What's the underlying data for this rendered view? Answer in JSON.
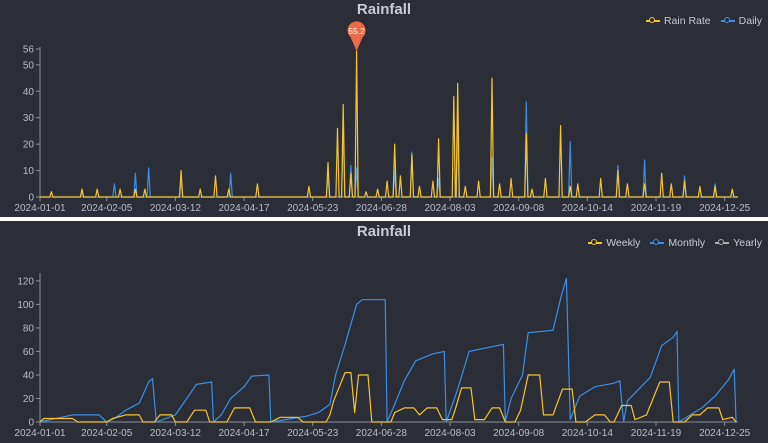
{
  "chart_data": [
    {
      "type": "line",
      "title": "Rainfall",
      "legend_position": "top-right",
      "grid": false,
      "x_tick_labels": [
        "2024-01-01",
        "2024-02-05",
        "2024-03-12",
        "2024-04-17",
        "2024-05-23",
        "2024-06-28",
        "2024-08-03",
        "2024-09-08",
        "2024-10-14",
        "2024-11-19",
        "2024-12-25"
      ],
      "y_ticks": [
        0,
        10,
        20,
        30,
        40,
        50,
        56
      ],
      "ylim": [
        0,
        56
      ],
      "x_range": [
        "2024-01-01",
        "2024-12-31"
      ],
      "series": [
        {
          "name": "Rain Rate",
          "color": "#f4c431",
          "points": [
            [
              "2024-01-07",
              2
            ],
            [
              "2024-01-23",
              3
            ],
            [
              "2024-01-31",
              3
            ],
            [
              "2024-02-12",
              3
            ],
            [
              "2024-02-20",
              3
            ],
            [
              "2024-02-25",
              3
            ],
            [
              "2024-03-15",
              10
            ],
            [
              "2024-03-25",
              3
            ],
            [
              "2024-04-02",
              8
            ],
            [
              "2024-04-09",
              3
            ],
            [
              "2024-04-24",
              5
            ],
            [
              "2024-05-21",
              4
            ],
            [
              "2024-05-31",
              13
            ],
            [
              "2024-06-05",
              26
            ],
            [
              "2024-06-08",
              35
            ],
            [
              "2024-06-12",
              9
            ],
            [
              "2024-06-15",
              55.2
            ],
            [
              "2024-06-20",
              2
            ],
            [
              "2024-06-26",
              3
            ],
            [
              "2024-07-01",
              6
            ],
            [
              "2024-07-05",
              20
            ],
            [
              "2024-07-08",
              8
            ],
            [
              "2024-07-14",
              16
            ],
            [
              "2024-07-18",
              4
            ],
            [
              "2024-07-25",
              6
            ],
            [
              "2024-07-28",
              22
            ],
            [
              "2024-08-05",
              38
            ],
            [
              "2024-08-07",
              43
            ],
            [
              "2024-08-11",
              4
            ],
            [
              "2024-08-18",
              6
            ],
            [
              "2024-08-25",
              45
            ],
            [
              "2024-08-29",
              5
            ],
            [
              "2024-09-04",
              7
            ],
            [
              "2024-09-12",
              24
            ],
            [
              "2024-09-15",
              3
            ],
            [
              "2024-09-22",
              7
            ],
            [
              "2024-09-30",
              27
            ],
            [
              "2024-10-05",
              4
            ],
            [
              "2024-10-09",
              5
            ],
            [
              "2024-10-21",
              7
            ],
            [
              "2024-10-30",
              10
            ],
            [
              "2024-11-04",
              5
            ],
            [
              "2024-11-13",
              5
            ],
            [
              "2024-11-22",
              9
            ],
            [
              "2024-11-27",
              5
            ],
            [
              "2024-12-04",
              6
            ],
            [
              "2024-12-12",
              4
            ],
            [
              "2024-12-20",
              4
            ],
            [
              "2024-12-29",
              3
            ]
          ],
          "max_marker": {
            "date": "2024-06-15",
            "value": 55.2
          }
        },
        {
          "name": "Daily",
          "color": "#3d8ee5",
          "points": [
            [
              "2024-01-23",
              2
            ],
            [
              "2024-02-09",
              5
            ],
            [
              "2024-02-20",
              9
            ],
            [
              "2024-02-27",
              11
            ],
            [
              "2024-03-15",
              6
            ],
            [
              "2024-04-10",
              9
            ],
            [
              "2024-05-31",
              8
            ],
            [
              "2024-06-08",
              26
            ],
            [
              "2024-06-12",
              12
            ],
            [
              "2024-06-15",
              11
            ],
            [
              "2024-07-05",
              10
            ],
            [
              "2024-07-14",
              17
            ],
            [
              "2024-07-28",
              7
            ],
            [
              "2024-08-07",
              27
            ],
            [
              "2024-08-25",
              15
            ],
            [
              "2024-09-12",
              36
            ],
            [
              "2024-10-05",
              21
            ],
            [
              "2024-10-30",
              12
            ],
            [
              "2024-11-13",
              14
            ],
            [
              "2024-12-04",
              8
            ],
            [
              "2024-12-20",
              5
            ]
          ]
        }
      ]
    },
    {
      "type": "line",
      "title": "Rainfall",
      "legend_position": "top-right",
      "grid": false,
      "x_tick_labels": [
        "2024-01-01",
        "2024-02-05",
        "2024-03-12",
        "2024-04-17",
        "2024-05-23",
        "2024-06-28",
        "2024-08-03",
        "2024-09-08",
        "2024-10-14",
        "2024-11-19",
        "2024-12-25"
      ],
      "y_ticks": [
        0,
        20,
        40,
        60,
        80,
        100,
        120
      ],
      "ylim": [
        0,
        125
      ],
      "x_range": [
        "2024-01-01",
        "2024-12-31"
      ],
      "series": [
        {
          "name": "Weekly",
          "color": "#f4c431",
          "points": [
            [
              "2024-01-01",
              0
            ],
            [
              "2024-01-03",
              3
            ],
            [
              "2024-01-18",
              3
            ],
            [
              "2024-01-21",
              0
            ],
            [
              "2024-02-05",
              0
            ],
            [
              "2024-02-08",
              3
            ],
            [
              "2024-02-15",
              6
            ],
            [
              "2024-02-22",
              6
            ],
            [
              "2024-02-24",
              0
            ],
            [
              "2024-03-01",
              0
            ],
            [
              "2024-03-04",
              6
            ],
            [
              "2024-03-10",
              6
            ],
            [
              "2024-03-12",
              0
            ],
            [
              "2024-03-18",
              0
            ],
            [
              "2024-03-22",
              10
            ],
            [
              "2024-03-28",
              10
            ],
            [
              "2024-03-30",
              0
            ],
            [
              "2024-04-08",
              0
            ],
            [
              "2024-04-12",
              12
            ],
            [
              "2024-04-20",
              12
            ],
            [
              "2024-04-23",
              0
            ],
            [
              "2024-05-01",
              0
            ],
            [
              "2024-05-06",
              4
            ],
            [
              "2024-05-15",
              4
            ],
            [
              "2024-05-18",
              0
            ],
            [
              "2024-05-30",
              0
            ],
            [
              "2024-06-01",
              6
            ],
            [
              "2024-06-03",
              18
            ],
            [
              "2024-06-09",
              42
            ],
            [
              "2024-06-12",
              42
            ],
            [
              "2024-06-14",
              8
            ],
            [
              "2024-06-16",
              40
            ],
            [
              "2024-06-21",
              40
            ],
            [
              "2024-06-23",
              0
            ],
            [
              "2024-07-03",
              0
            ],
            [
              "2024-07-05",
              8
            ],
            [
              "2024-07-10",
              12
            ],
            [
              "2024-07-15",
              12
            ],
            [
              "2024-07-18",
              6
            ],
            [
              "2024-07-22",
              12
            ],
            [
              "2024-07-27",
              12
            ],
            [
              "2024-07-30",
              2
            ],
            [
              "2024-08-04",
              2
            ],
            [
              "2024-08-06",
              12
            ],
            [
              "2024-08-09",
              29
            ],
            [
              "2024-08-14",
              29
            ],
            [
              "2024-08-16",
              2
            ],
            [
              "2024-08-21",
              2
            ],
            [
              "2024-08-25",
              12
            ],
            [
              "2024-08-29",
              12
            ],
            [
              "2024-09-01",
              0
            ],
            [
              "2024-09-06",
              0
            ],
            [
              "2024-09-09",
              10
            ],
            [
              "2024-09-13",
              40
            ],
            [
              "2024-09-19",
              40
            ],
            [
              "2024-09-21",
              6
            ],
            [
              "2024-09-26",
              6
            ],
            [
              "2024-10-01",
              28
            ],
            [
              "2024-10-06",
              28
            ],
            [
              "2024-10-08",
              0
            ],
            [
              "2024-10-13",
              0
            ],
            [
              "2024-10-18",
              6
            ],
            [
              "2024-10-23",
              6
            ],
            [
              "2024-10-26",
              0
            ],
            [
              "2024-10-28",
              0
            ],
            [
              "2024-11-01",
              14
            ],
            [
              "2024-11-06",
              14
            ],
            [
              "2024-11-08",
              2
            ],
            [
              "2024-11-14",
              6
            ],
            [
              "2024-11-21",
              34
            ],
            [
              "2024-11-26",
              34
            ],
            [
              "2024-11-28",
              0
            ],
            [
              "2024-12-04",
              0
            ],
            [
              "2024-12-08",
              6
            ],
            [
              "2024-12-12",
              6
            ],
            [
              "2024-12-16",
              12
            ],
            [
              "2024-12-22",
              12
            ],
            [
              "2024-12-24",
              2
            ],
            [
              "2024-12-29",
              4
            ],
            [
              "2024-12-31",
              0
            ]
          ]
        },
        {
          "name": "Monthly",
          "color": "#3d8ee5",
          "points": [
            [
              "2024-01-01",
              0
            ],
            [
              "2024-01-18",
              6
            ],
            [
              "2024-02-01",
              6
            ],
            [
              "2024-02-05",
              0
            ],
            [
              "2024-02-09",
              3
            ],
            [
              "2024-02-15",
              10
            ],
            [
              "2024-02-22",
              16
            ],
            [
              "2024-02-27",
              34
            ],
            [
              "2024-02-29",
              37
            ],
            [
              "2024-03-02",
              0
            ],
            [
              "2024-03-12",
              6
            ],
            [
              "2024-03-18",
              20
            ],
            [
              "2024-03-23",
              32
            ],
            [
              "2024-03-31",
              34
            ],
            [
              "2024-04-01",
              0
            ],
            [
              "2024-04-05",
              6
            ],
            [
              "2024-04-10",
              20
            ],
            [
              "2024-04-17",
              30
            ],
            [
              "2024-04-21",
              39
            ],
            [
              "2024-04-30",
              40
            ],
            [
              "2024-05-01",
              0
            ],
            [
              "2024-05-20",
              5
            ],
            [
              "2024-05-26",
              8
            ],
            [
              "2024-06-01",
              15
            ],
            [
              "2024-06-04",
              40
            ],
            [
              "2024-06-09",
              66
            ],
            [
              "2024-06-15",
              100
            ],
            [
              "2024-06-18",
              104
            ],
            [
              "2024-06-30",
              104
            ],
            [
              "2024-07-01",
              0
            ],
            [
              "2024-07-05",
              15
            ],
            [
              "2024-07-10",
              35
            ],
            [
              "2024-07-16",
              52
            ],
            [
              "2024-07-25",
              58
            ],
            [
              "2024-07-31",
              60
            ],
            [
              "2024-08-01",
              0
            ],
            [
              "2024-08-07",
              28
            ],
            [
              "2024-08-13",
              60
            ],
            [
              "2024-08-25",
              64
            ],
            [
              "2024-08-31",
              66
            ],
            [
              "2024-09-01",
              0
            ],
            [
              "2024-09-04",
              20
            ],
            [
              "2024-09-10",
              40
            ],
            [
              "2024-09-13",
              76
            ],
            [
              "2024-09-26",
              78
            ],
            [
              "2024-09-30",
              105
            ],
            [
              "2024-10-03",
              122
            ],
            [
              "2024-10-05",
              2
            ],
            [
              "2024-10-10",
              22
            ],
            [
              "2024-10-18",
              30
            ],
            [
              "2024-10-28",
              33
            ],
            [
              "2024-10-31",
              35
            ],
            [
              "2024-11-02",
              0
            ],
            [
              "2024-11-04",
              18
            ],
            [
              "2024-11-10",
              28
            ],
            [
              "2024-11-16",
              38
            ],
            [
              "2024-11-22",
              65
            ],
            [
              "2024-11-28",
              72
            ],
            [
              "2024-11-30",
              77
            ],
            [
              "2024-12-01",
              0
            ],
            [
              "2024-12-07",
              6
            ],
            [
              "2024-12-13",
              12
            ],
            [
              "2024-12-20",
              22
            ],
            [
              "2024-12-27",
              36
            ],
            [
              "2024-12-30",
              45
            ],
            [
              "2024-12-31",
              0
            ]
          ]
        },
        {
          "name": "Yearly",
          "color": "#aaaaaa",
          "points": []
        }
      ]
    }
  ]
}
